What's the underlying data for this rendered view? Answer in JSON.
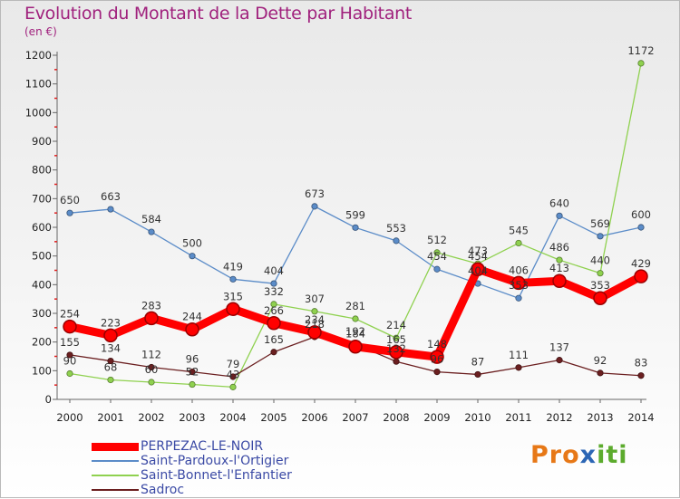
{
  "title": "Evolution du Montant de la Dette par Habitant",
  "subtitle": "(en €)",
  "logo": {
    "pro": "Pro",
    "x": "x",
    "iti": "iti"
  },
  "chart_data": {
    "type": "line",
    "title": "Evolution du Montant de la Dette par Habitant",
    "unit": "(en €)",
    "x": [
      "2000",
      "2001",
      "2002",
      "2003",
      "2004",
      "2005",
      "2006",
      "2007",
      "2008",
      "2009",
      "2010",
      "2011",
      "2012",
      "2013",
      "2014"
    ],
    "ylim": [
      0,
      1200
    ],
    "yticks": [
      0,
      100,
      200,
      300,
      400,
      500,
      600,
      700,
      800,
      900,
      1000,
      1100,
      1200
    ],
    "grid": false,
    "legend_position": "bottom-left",
    "series": [
      {
        "name": "Saint-Pardoux-l'Ortigier",
        "color": "#5b8cc8",
        "values": [
          650,
          663,
          584,
          500,
          419,
          404,
          673,
          599,
          553,
          454,
          404,
          353,
          640,
          569,
          600
        ]
      },
      {
        "name": "Saint-Bonnet-l'Enfantier",
        "color": "#8fd14f",
        "values": [
          90,
          68,
          60,
          52,
          43,
          332,
          307,
          281,
          214,
          512,
          473,
          545,
          486,
          440,
          1172
        ]
      },
      {
        "name": "Sadroc",
        "color": "#6b1f20",
        "values": [
          155,
          134,
          112,
          96,
          79,
          165,
          218,
          192,
          132,
          96,
          87,
          111,
          137,
          92,
          83
        ]
      },
      {
        "name": "PERPEZAC-LE-NOIR",
        "color": "#ff0000",
        "values": [
          254,
          223,
          283,
          244,
          315,
          266,
          234,
          184,
          165,
          148,
          454,
          406,
          413,
          353,
          429
        ]
      }
    ],
    "legend_order": [
      "PERPEZAC-LE-NOIR",
      "Saint-Pardoux-l'Ortigier",
      "Saint-Bonnet-l'Enfantier",
      "Sadroc"
    ]
  }
}
